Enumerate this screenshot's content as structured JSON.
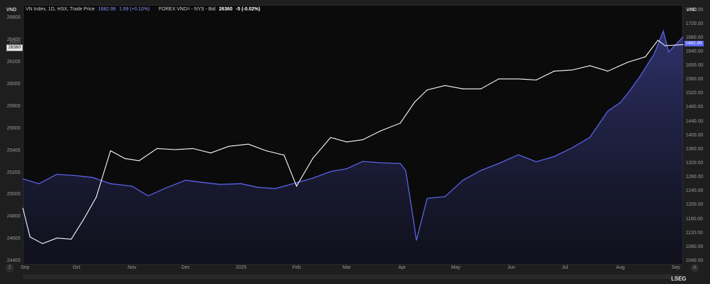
{
  "legend": {
    "series1_name": "VN Index, 1D, HSX, Trade Price",
    "series1_value": "1682.99",
    "series1_change": "1.69 (+0.10%)",
    "series2_name": "FOREX VND= - NYS - Bid",
    "series2_value": "26360",
    "series2_change": "-5 (-0.02%)"
  },
  "axes": {
    "left_unit": "VND",
    "right_unit": "VND",
    "left_ticks": [
      "26600",
      "26400",
      "26200",
      "26000",
      "25800",
      "25600",
      "25400",
      "25200",
      "25000",
      "24800",
      "24600",
      "24400"
    ],
    "right_ticks": [
      "1760.00",
      "1720.00",
      "1680.00",
      "1640.00",
      "1600.00",
      "1560.00",
      "1520.00",
      "1480.00",
      "1440.00",
      "1400.00",
      "1360.00",
      "1320.00",
      "1280.00",
      "1240.00",
      "1200.00",
      "1160.00",
      "1120.00",
      "1080.00",
      "1040.00"
    ],
    "x_ticks": [
      "Sep",
      "Oct",
      "Nov",
      "Dec",
      "2025",
      "Feb",
      "Mar",
      "Apr",
      "May",
      "Jun",
      "Jul",
      "Aug",
      "Sep"
    ]
  },
  "tags": {
    "left_price": "26360",
    "left_hidden": "26400",
    "right_price": "1682.99"
  },
  "controls": {
    "left_badge": "2",
    "right_badge": "A"
  },
  "brand": "LSEG",
  "colors": {
    "vnindex": "#5b63e8",
    "fx": "#ffffff",
    "background": "#0b0b0b"
  },
  "chart_data": {
    "type": "line",
    "title": "",
    "x_range": [
      "2024-09-01",
      "2025-09-05"
    ],
    "series": [
      {
        "name": "VN Index, 1D, HSX, Trade Price",
        "axis": "right",
        "area": true,
        "ylim": [
          1030,
          1775
        ],
        "x": [
          "2024-09-01",
          "2024-09-10",
          "2024-09-20",
          "2024-10-01",
          "2024-10-10",
          "2024-10-20",
          "2024-11-01",
          "2024-11-10",
          "2024-11-20",
          "2024-12-01",
          "2024-12-10",
          "2024-12-20",
          "2025-01-01",
          "2025-01-10",
          "2025-01-20",
          "2025-02-01",
          "2025-02-10",
          "2025-02-20",
          "2025-03-01",
          "2025-03-10",
          "2025-03-20",
          "2025-03-31",
          "2025-04-03",
          "2025-04-07",
          "2025-04-09",
          "2025-04-15",
          "2025-04-25",
          "2025-05-05",
          "2025-05-15",
          "2025-05-25",
          "2025-06-05",
          "2025-06-15",
          "2025-06-25",
          "2025-07-05",
          "2025-07-15",
          "2025-07-25",
          "2025-08-01",
          "2025-08-05",
          "2025-08-12",
          "2025-08-20",
          "2025-08-25",
          "2025-08-28",
          "2025-09-05"
        ],
        "values": [
          1276,
          1262,
          1289,
          1285,
          1280,
          1262,
          1255,
          1227,
          1250,
          1272,
          1266,
          1260,
          1262,
          1252,
          1248,
          1265,
          1278,
          1297,
          1305,
          1326,
          1322,
          1320,
          1300,
          1170,
          1100,
          1220,
          1225,
          1272,
          1300,
          1320,
          1345,
          1325,
          1340,
          1365,
          1395,
          1470,
          1495,
          1520,
          1570,
          1635,
          1700,
          1640,
          1682.99
        ]
      },
      {
        "name": "FOREX VND= - NYS - Bid",
        "axis": "left",
        "ylim": [
          24370,
          26720
        ],
        "x": [
          "2024-09-01",
          "2024-09-05",
          "2024-09-12",
          "2024-09-20",
          "2024-09-28",
          "2024-10-05",
          "2024-10-12",
          "2024-10-20",
          "2024-10-28",
          "2024-11-05",
          "2024-11-15",
          "2024-11-25",
          "2024-12-05",
          "2024-12-15",
          "2024-12-25",
          "2025-01-05",
          "2025-01-15",
          "2025-01-25",
          "2025-02-01",
          "2025-02-10",
          "2025-02-20",
          "2025-03-01",
          "2025-03-10",
          "2025-03-20",
          "2025-03-31",
          "2025-04-08",
          "2025-04-15",
          "2025-04-25",
          "2025-05-05",
          "2025-05-15",
          "2025-05-25",
          "2025-06-05",
          "2025-06-15",
          "2025-06-25",
          "2025-07-05",
          "2025-07-15",
          "2025-07-25",
          "2025-08-05",
          "2025-08-15",
          "2025-08-22",
          "2025-08-26",
          "2025-09-05"
        ],
        "values": [
          24880,
          24620,
          24560,
          24610,
          24600,
          24780,
          24980,
          25400,
          25330,
          25310,
          25420,
          25410,
          25420,
          25380,
          25440,
          25460,
          25400,
          25360,
          25080,
          25330,
          25520,
          25480,
          25500,
          25580,
          25650,
          25840,
          25950,
          25990,
          25960,
          25960,
          26050,
          26050,
          26040,
          26120,
          26130,
          26170,
          26120,
          26200,
          26250,
          26400,
          26350,
          26360
        ]
      }
    ]
  }
}
